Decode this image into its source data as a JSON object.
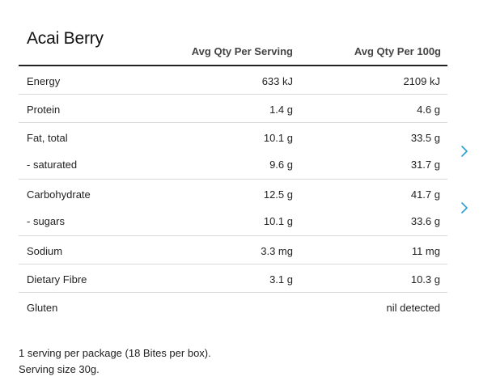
{
  "product": {
    "title": "Acai Berry"
  },
  "columns": {
    "per_serving": "Avg Qty Per Serving",
    "per_100g": "Avg Qty Per 100g"
  },
  "rows": [
    {
      "label": "Energy",
      "per_serving": "633 kJ",
      "per_100g": "2109 kJ"
    },
    {
      "label": "Protein",
      "per_serving": "1.4 g",
      "per_100g": "4.6 g"
    },
    {
      "label": "Fat, total",
      "per_serving": "10.1 g",
      "per_100g": "33.5 g"
    },
    {
      "label": "- saturated",
      "per_serving": "9.6 g",
      "per_100g": "31.7 g"
    },
    {
      "label": "Carbohydrate",
      "per_serving": "12.5 g",
      "per_100g": "41.7 g"
    },
    {
      "label": "- sugars",
      "per_serving": "10.1 g",
      "per_100g": "33.6 g"
    },
    {
      "label": "Sodium",
      "per_serving": "3.3 mg",
      "per_100g": "11 mg"
    },
    {
      "label": "Dietary Fibre",
      "per_serving": "3.1 g",
      "per_100g": "10.3 g"
    },
    {
      "label": "Gluten",
      "per_serving": "",
      "per_100g": "nil detected"
    }
  ],
  "icons": {
    "expand_fat": "chevron-right-icon",
    "expand_carbohydrate": "chevron-right-icon"
  },
  "colors": {
    "chevron": "#2a9fd6",
    "header_rule": "#222222",
    "row_divider": "#d9d9d9"
  },
  "footer": {
    "servings_line": "1 serving per package (18 Bites per box).",
    "serving_size_line": "Serving size 30g."
  }
}
